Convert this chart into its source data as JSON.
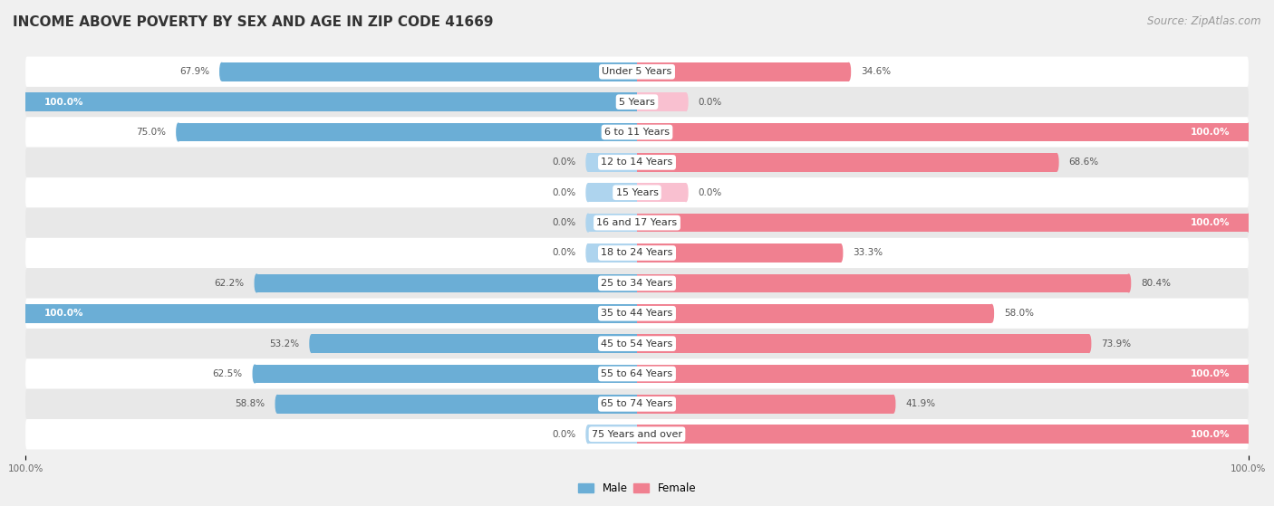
{
  "title": "INCOME ABOVE POVERTY BY SEX AND AGE IN ZIP CODE 41669",
  "source": "Source: ZipAtlas.com",
  "categories": [
    "Under 5 Years",
    "5 Years",
    "6 to 11 Years",
    "12 to 14 Years",
    "15 Years",
    "16 and 17 Years",
    "18 to 24 Years",
    "25 to 34 Years",
    "35 to 44 Years",
    "45 to 54 Years",
    "55 to 64 Years",
    "65 to 74 Years",
    "75 Years and over"
  ],
  "male": [
    67.9,
    100.0,
    75.0,
    0.0,
    0.0,
    0.0,
    0.0,
    62.2,
    100.0,
    53.2,
    62.5,
    58.8,
    0.0
  ],
  "female": [
    34.6,
    0.0,
    100.0,
    68.6,
    0.0,
    100.0,
    33.3,
    80.4,
    58.0,
    73.9,
    100.0,
    41.9,
    100.0
  ],
  "male_color": "#6baed6",
  "female_color": "#f08090",
  "male_stub_color": "#aed4ee",
  "female_stub_color": "#f9c0d0",
  "bg_color": "#f0f0f0",
  "bar_bg_white": "#ffffff",
  "bar_bg_gray": "#e8e8e8",
  "title_fontsize": 11,
  "source_fontsize": 8.5,
  "label_fontsize": 8,
  "value_fontsize": 7.5,
  "legend_fontsize": 8.5,
  "axis_label_fontsize": 7.5
}
